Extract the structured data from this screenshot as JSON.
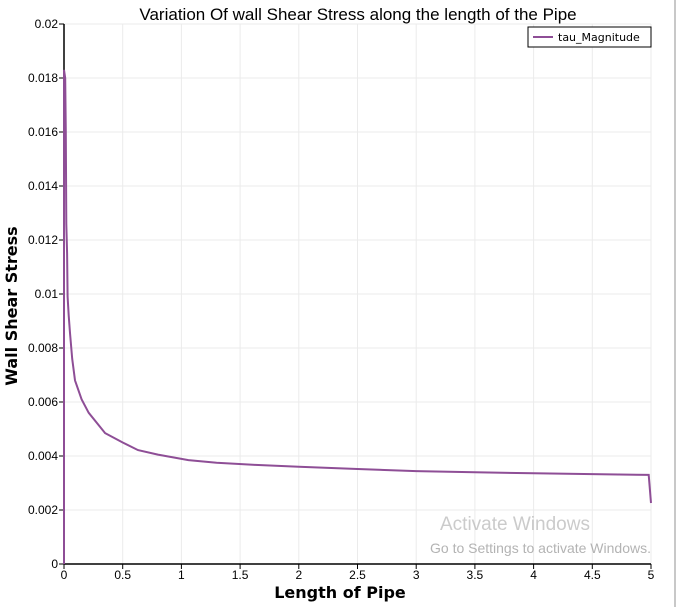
{
  "chart_data": {
    "type": "line",
    "title": "Variation Of wall Shear Stress along the length of the Pipe",
    "xlabel": "Length of Pipe",
    "ylabel": "Wall Shear Stress",
    "xlim": [
      0,
      5
    ],
    "ylim": [
      0,
      0.02
    ],
    "xticks": [
      "0",
      "0.5",
      "1",
      "1.5",
      "2",
      "2.5",
      "3",
      "3.5",
      "4",
      "4.5",
      "5"
    ],
    "yticks": [
      "0",
      "0.002",
      "0.004",
      "0.006",
      "0.008",
      "0.01",
      "0.012",
      "0.014",
      "0.016",
      "0.018",
      "0.02"
    ],
    "grid": true,
    "legend_position": "top-right",
    "series": [
      {
        "name": "tau_Magnitude",
        "color": "#8e4e96",
        "x": [
          0,
          0,
          0.01,
          0.015,
          0.02,
          0.026,
          0.031,
          0.04,
          0.051,
          0.07,
          0.094,
          0.15,
          0.21,
          0.35,
          0.5,
          0.63,
          0.8,
          1.06,
          1.3,
          1.63,
          2.0,
          2.5,
          3.0,
          3.5,
          4.0,
          4.5,
          4.98,
          5.0
        ],
        "y": [
          0,
          0.0183,
          0.018,
          0.016,
          0.0126,
          0.0115,
          0.0099,
          0.0092,
          0.00856,
          0.0076,
          0.0068,
          0.0061,
          0.0056,
          0.00485,
          0.0045,
          0.00422,
          0.00405,
          0.00385,
          0.00375,
          0.00367,
          0.0036,
          0.00352,
          0.00344,
          0.0034,
          0.00336,
          0.00333,
          0.0033,
          0.00226
        ]
      }
    ]
  },
  "watermark": {
    "line1": "Activate Windows",
    "line2": "Go to Settings to activate Windows."
  }
}
